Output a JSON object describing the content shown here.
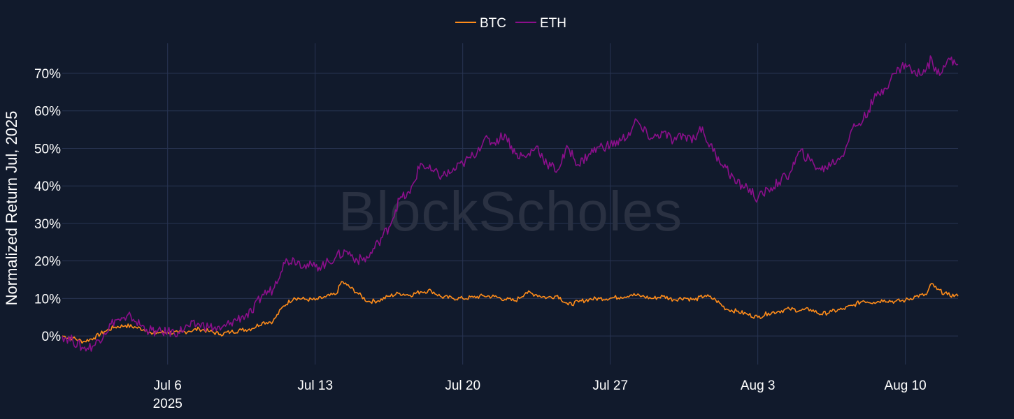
{
  "chart_data": {
    "type": "line",
    "title": "",
    "xlabel": "",
    "ylabel": "Normalized Return Jul, 2025",
    "watermark": "BlockScholes",
    "legend": {
      "placement": "top-center"
    },
    "grid": true,
    "x_ticks": [
      {
        "label": "Jul 6",
        "sublabel": "2025",
        "date": "2025-07-06"
      },
      {
        "label": "Jul 13",
        "sublabel": "",
        "date": "2025-07-13"
      },
      {
        "label": "Jul 20",
        "sublabel": "",
        "date": "2025-07-20"
      },
      {
        "label": "Jul 27",
        "sublabel": "",
        "date": "2025-07-27"
      },
      {
        "label": "Aug 3",
        "sublabel": "",
        "date": "2025-08-03"
      },
      {
        "label": "Aug 10",
        "sublabel": "",
        "date": "2025-08-10"
      }
    ],
    "y_ticks": [
      "0%",
      "10%",
      "20%",
      "30%",
      "40%",
      "50%",
      "60%",
      "70%"
    ],
    "xlim": [
      "2025-07-01",
      "2025-08-12T12:00"
    ],
    "ylim": [
      -7.6,
      78
    ],
    "series": [
      {
        "name": "BTC",
        "color": "#ff8c1a",
        "points": [
          [
            "2025-07-01T00:00",
            0.0
          ],
          [
            "2025-07-01T12:00",
            -0.6
          ],
          [
            "2025-07-02T00:00",
            -1.5
          ],
          [
            "2025-07-02T12:00",
            -0.5
          ],
          [
            "2025-07-03T00:00",
            1.2
          ],
          [
            "2025-07-03T12:00",
            2.4
          ],
          [
            "2025-07-04T00:00",
            2.8
          ],
          [
            "2025-07-04T12:00",
            2.3
          ],
          [
            "2025-07-05T00:00",
            1.6
          ],
          [
            "2025-07-05T06:00",
            0.5
          ],
          [
            "2025-07-05T12:00",
            0.9
          ],
          [
            "2025-07-06T00:00",
            1.0
          ],
          [
            "2025-07-06T12:00",
            0.8
          ],
          [
            "2025-07-07T00:00",
            1.3
          ],
          [
            "2025-07-07T12:00",
            1.9
          ],
          [
            "2025-07-08T00:00",
            1.2
          ],
          [
            "2025-07-08T12:00",
            0.5
          ],
          [
            "2025-07-09T00:00",
            1.1
          ],
          [
            "2025-07-09T12:00",
            1.6
          ],
          [
            "2025-07-10T00:00",
            2.0
          ],
          [
            "2025-07-10T12:00",
            3.6
          ],
          [
            "2025-07-11T00:00",
            3.9
          ],
          [
            "2025-07-11T12:00",
            8.0
          ],
          [
            "2025-07-12T00:00",
            10.2
          ],
          [
            "2025-07-12T12:00",
            9.8
          ],
          [
            "2025-07-13T00:00",
            9.6
          ],
          [
            "2025-07-13T12:00",
            10.4
          ],
          [
            "2025-07-14T00:00",
            11.2
          ],
          [
            "2025-07-14T06:00",
            14.5
          ],
          [
            "2025-07-14T12:00",
            13.6
          ],
          [
            "2025-07-15T00:00",
            11.5
          ],
          [
            "2025-07-15T12:00",
            9.2
          ],
          [
            "2025-07-16T00:00",
            9.4
          ],
          [
            "2025-07-16T12:00",
            10.6
          ],
          [
            "2025-07-17T00:00",
            11.4
          ],
          [
            "2025-07-17T12:00",
            10.9
          ],
          [
            "2025-07-18T00:00",
            11.8
          ],
          [
            "2025-07-18T12:00",
            12.1
          ],
          [
            "2025-07-19T00:00",
            10.4
          ],
          [
            "2025-07-19T12:00",
            10.1
          ],
          [
            "2025-07-20T00:00",
            10.0
          ],
          [
            "2025-07-20T12:00",
            10.3
          ],
          [
            "2025-07-21T00:00",
            10.7
          ],
          [
            "2025-07-21T12:00",
            10.5
          ],
          [
            "2025-07-22T00:00",
            9.8
          ],
          [
            "2025-07-22T12:00",
            9.4
          ],
          [
            "2025-07-23T00:00",
            11.6
          ],
          [
            "2025-07-23T12:00",
            11.0
          ],
          [
            "2025-07-24T00:00",
            10.2
          ],
          [
            "2025-07-24T12:00",
            10.8
          ],
          [
            "2025-07-25T00:00",
            8.3
          ],
          [
            "2025-07-25T12:00",
            9.1
          ],
          [
            "2025-07-26T00:00",
            9.8
          ],
          [
            "2025-07-26T12:00",
            10.0
          ],
          [
            "2025-07-27T00:00",
            10.1
          ],
          [
            "2025-07-27T12:00",
            10.4
          ],
          [
            "2025-07-28T00:00",
            11.0
          ],
          [
            "2025-07-28T12:00",
            10.6
          ],
          [
            "2025-07-29T00:00",
            10.0
          ],
          [
            "2025-07-29T12:00",
            10.6
          ],
          [
            "2025-07-30T00:00",
            9.7
          ],
          [
            "2025-07-30T12:00",
            10.2
          ],
          [
            "2025-07-31T00:00",
            9.6
          ],
          [
            "2025-07-31T12:00",
            10.8
          ],
          [
            "2025-08-01T00:00",
            9.6
          ],
          [
            "2025-08-01T12:00",
            7.2
          ],
          [
            "2025-08-02T00:00",
            6.6
          ],
          [
            "2025-08-02T12:00",
            5.8
          ],
          [
            "2025-08-03T00:00",
            5.0
          ],
          [
            "2025-08-03T12:00",
            6.1
          ],
          [
            "2025-08-04T00:00",
            6.6
          ],
          [
            "2025-08-04T12:00",
            7.2
          ],
          [
            "2025-08-05T00:00",
            6.8
          ],
          [
            "2025-08-05T12:00",
            7.1
          ],
          [
            "2025-08-06T00:00",
            5.8
          ],
          [
            "2025-08-06T12:00",
            6.5
          ],
          [
            "2025-08-07T00:00",
            7.1
          ],
          [
            "2025-08-07T12:00",
            8.1
          ],
          [
            "2025-08-08T00:00",
            9.4
          ],
          [
            "2025-08-08T12:00",
            9.0
          ],
          [
            "2025-08-09T00:00",
            9.6
          ],
          [
            "2025-08-09T12:00",
            9.2
          ],
          [
            "2025-08-10T00:00",
            9.5
          ],
          [
            "2025-08-10T12:00",
            10.6
          ],
          [
            "2025-08-11T00:00",
            11.0
          ],
          [
            "2025-08-11T06:00",
            14.0
          ],
          [
            "2025-08-11T12:00",
            12.4
          ],
          [
            "2025-08-12T00:00",
            11.0
          ],
          [
            "2025-08-12T12:00",
            10.6
          ]
        ]
      },
      {
        "name": "ETH",
        "color": "#8b0f8b",
        "points": [
          [
            "2025-07-01T00:00",
            0.0
          ],
          [
            "2025-07-01T12:00",
            -1.2
          ],
          [
            "2025-07-02T00:00",
            -3.3
          ],
          [
            "2025-07-02T12:00",
            -2.6
          ],
          [
            "2025-07-03T00:00",
            0.8
          ],
          [
            "2025-07-03T12:00",
            4.3
          ],
          [
            "2025-07-04T00:00",
            4.2
          ],
          [
            "2025-07-04T06:00",
            5.4
          ],
          [
            "2025-07-04T12:00",
            3.8
          ],
          [
            "2025-07-05T00:00",
            1.8
          ],
          [
            "2025-07-05T12:00",
            1.0
          ],
          [
            "2025-07-06T00:00",
            1.1
          ],
          [
            "2025-07-06T12:00",
            1.0
          ],
          [
            "2025-07-07T00:00",
            2.6
          ],
          [
            "2025-07-07T12:00",
            3.1
          ],
          [
            "2025-07-08T00:00",
            2.4
          ],
          [
            "2025-07-08T12:00",
            1.6
          ],
          [
            "2025-07-09T00:00",
            3.6
          ],
          [
            "2025-07-09T12:00",
            5.1
          ],
          [
            "2025-07-10T00:00",
            6.2
          ],
          [
            "2025-07-10T12:00",
            11.1
          ],
          [
            "2025-07-11T00:00",
            12.4
          ],
          [
            "2025-07-11T12:00",
            19.6
          ],
          [
            "2025-07-12T00:00",
            20.4
          ],
          [
            "2025-07-12T12:00",
            19.0
          ],
          [
            "2025-07-13T00:00",
            18.4
          ],
          [
            "2025-07-13T12:00",
            19.2
          ],
          [
            "2025-07-14T00:00",
            21.2
          ],
          [
            "2025-07-14T12:00",
            22.6
          ],
          [
            "2025-07-15T00:00",
            20.2
          ],
          [
            "2025-07-15T12:00",
            20.8
          ],
          [
            "2025-07-16T00:00",
            25.0
          ],
          [
            "2025-07-16T12:00",
            29.0
          ],
          [
            "2025-07-17T00:00",
            36.5
          ],
          [
            "2025-07-17T12:00",
            38.0
          ],
          [
            "2025-07-18T00:00",
            46.0
          ],
          [
            "2025-07-18T12:00",
            44.0
          ],
          [
            "2025-07-19T00:00",
            42.6
          ],
          [
            "2025-07-19T12:00",
            43.8
          ],
          [
            "2025-07-20T00:00",
            46.0
          ],
          [
            "2025-07-20T12:00",
            48.0
          ],
          [
            "2025-07-21T00:00",
            52.2
          ],
          [
            "2025-07-21T12:00",
            51.6
          ],
          [
            "2025-07-22T00:00",
            53.8
          ],
          [
            "2025-07-22T12:00",
            48.5
          ],
          [
            "2025-07-23T00:00",
            47.6
          ],
          [
            "2025-07-23T12:00",
            50.6
          ],
          [
            "2025-07-24T00:00",
            45.8
          ],
          [
            "2025-07-24T12:00",
            44.2
          ],
          [
            "2025-07-25T00:00",
            50.2
          ],
          [
            "2025-07-25T12:00",
            45.6
          ],
          [
            "2025-07-26T00:00",
            48.6
          ],
          [
            "2025-07-26T12:00",
            50.4
          ],
          [
            "2025-07-27T00:00",
            50.8
          ],
          [
            "2025-07-27T12:00",
            52.0
          ],
          [
            "2025-07-28T00:00",
            54.6
          ],
          [
            "2025-07-28T06:00",
            57.6
          ],
          [
            "2025-07-28T12:00",
            55.0
          ],
          [
            "2025-07-29T00:00",
            52.6
          ],
          [
            "2025-07-29T12:00",
            54.2
          ],
          [
            "2025-07-30T00:00",
            52.0
          ],
          [
            "2025-07-30T12:00",
            53.4
          ],
          [
            "2025-07-31T00:00",
            52.6
          ],
          [
            "2025-07-31T06:00",
            55.8
          ],
          [
            "2025-07-31T12:00",
            53.0
          ],
          [
            "2025-08-01T00:00",
            48.4
          ],
          [
            "2025-08-01T12:00",
            44.8
          ],
          [
            "2025-08-02T00:00",
            40.6
          ],
          [
            "2025-08-02T12:00",
            39.6
          ],
          [
            "2025-08-03T00:00",
            36.6
          ],
          [
            "2025-08-03T12:00",
            39.0
          ],
          [
            "2025-08-04T00:00",
            41.0
          ],
          [
            "2025-08-04T12:00",
            43.2
          ],
          [
            "2025-08-05T00:00",
            49.2
          ],
          [
            "2025-08-05T12:00",
            46.6
          ],
          [
            "2025-08-06T00:00",
            44.2
          ],
          [
            "2025-08-06T12:00",
            46.0
          ],
          [
            "2025-08-07T00:00",
            48.0
          ],
          [
            "2025-08-07T12:00",
            55.4
          ],
          [
            "2025-08-08T00:00",
            57.6
          ],
          [
            "2025-08-08T12:00",
            63.0
          ],
          [
            "2025-08-09T00:00",
            66.0
          ],
          [
            "2025-08-09T12:00",
            70.0
          ],
          [
            "2025-08-10T00:00",
            72.6
          ],
          [
            "2025-08-10T12:00",
            69.6
          ],
          [
            "2025-08-11T00:00",
            71.2
          ],
          [
            "2025-08-11T06:00",
            74.0
          ],
          [
            "2025-08-11T12:00",
            69.8
          ],
          [
            "2025-08-12T00:00",
            73.6
          ],
          [
            "2025-08-12T12:00",
            72.4
          ]
        ]
      }
    ]
  }
}
